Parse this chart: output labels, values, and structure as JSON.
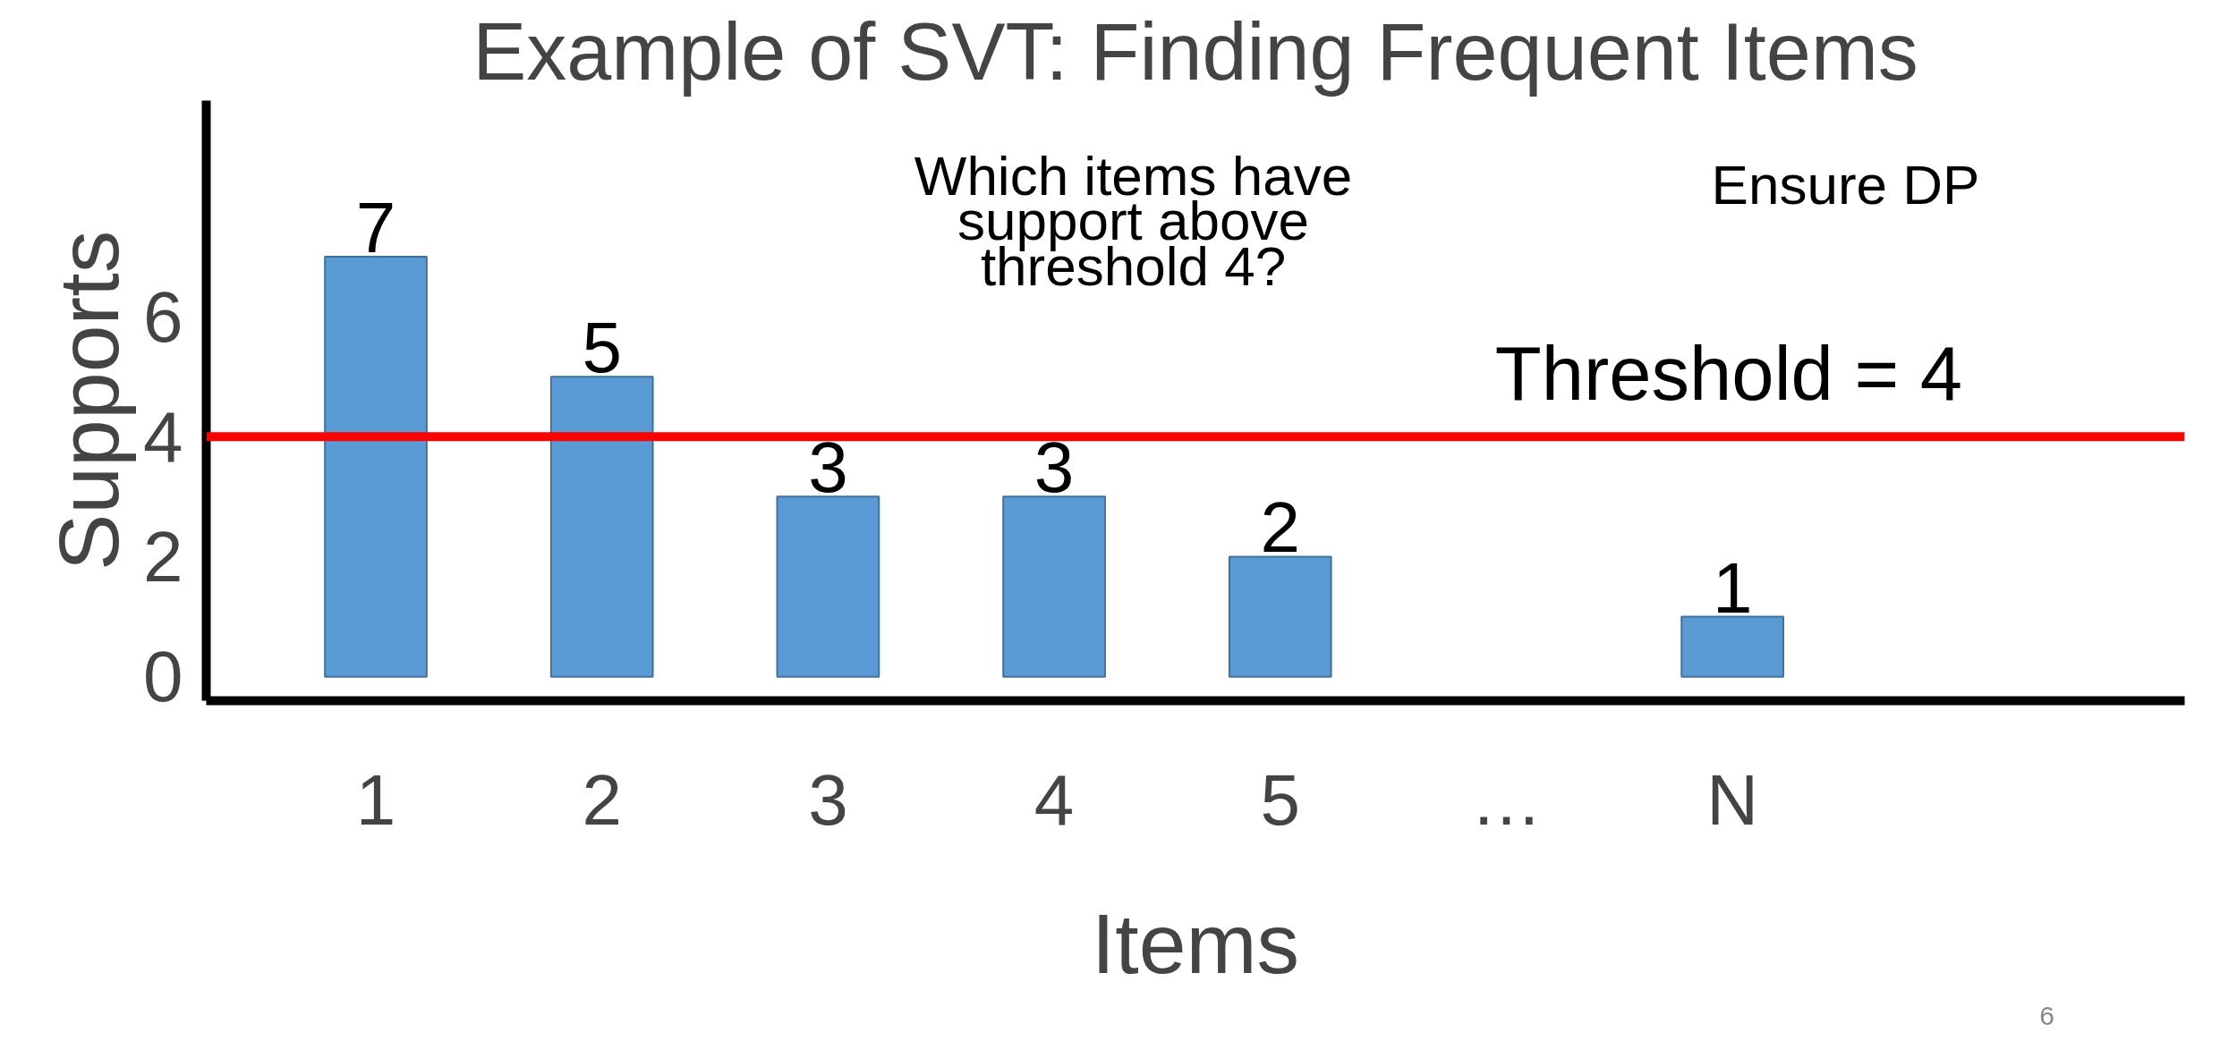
{
  "chart_data": {
    "type": "bar",
    "title": "Example of SVT: Finding Frequent Items",
    "xlabel": "Items",
    "ylabel": "Supports",
    "categories": [
      "1",
      "2",
      "3",
      "4",
      "5",
      "…",
      "N"
    ],
    "values": [
      7,
      5,
      3,
      3,
      2,
      null,
      1
    ],
    "color": "#5b9bd5",
    "data_labels": true,
    "ylim": [
      -0.4,
      9.6
    ],
    "yticks": [
      0,
      2,
      4,
      6
    ],
    "grid": false,
    "ref_lines": [
      {
        "axis": "y",
        "value": 4,
        "label": "Threshold = 4",
        "color": "#ff0000"
      }
    ],
    "annotations": [
      "Which items have support above threshold 4?",
      "Ensure DP",
      "6"
    ]
  }
}
